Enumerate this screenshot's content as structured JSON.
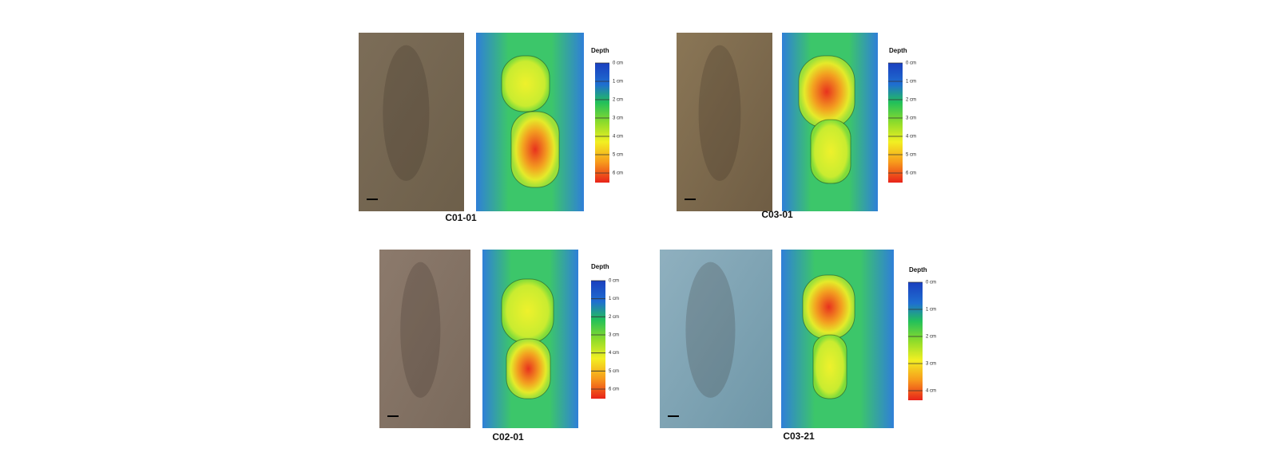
{
  "panels": [
    {
      "label": "C01-01",
      "legend": {
        "title": "Depth",
        "ticks": [
          "0 cm",
          "1 cm",
          "2 cm",
          "3 cm",
          "4 cm",
          "5 cm",
          "6 cm"
        ]
      }
    },
    {
      "label": "C03-01",
      "legend": {
        "title": "Depth",
        "ticks": [
          "0 cm",
          "1 cm",
          "2 cm",
          "3 cm",
          "4 cm",
          "5 cm",
          "6 cm"
        ]
      }
    },
    {
      "label": "C02-01",
      "legend": {
        "title": "Depth",
        "ticks": [
          "0 cm",
          "1 cm",
          "2 cm",
          "3 cm",
          "4 cm",
          "5 cm",
          "6 cm"
        ]
      }
    },
    {
      "label": "C03-21",
      "legend": {
        "title": "Depth",
        "ticks": [
          "0 cm",
          "1 cm",
          "2 cm",
          "3 cm",
          "4 cm"
        ]
      }
    }
  ]
}
